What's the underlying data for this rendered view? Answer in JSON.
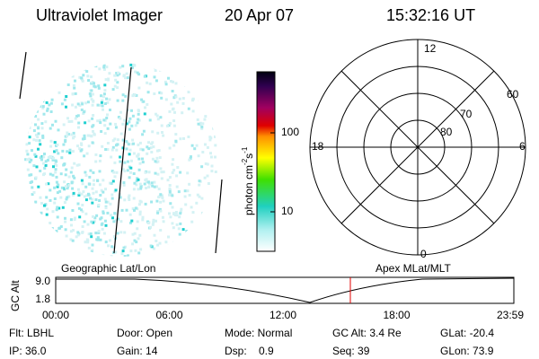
{
  "header": {
    "instrument": "Ultraviolet Imager",
    "date": "20 Apr 07",
    "time": "15:32:16 UT"
  },
  "colorbar": {
    "label": {
      "base": "photon cm",
      "exp1": "-2",
      "unit2": "s",
      "exp2": "-1"
    },
    "ticks": [
      "100",
      "10"
    ]
  },
  "polar": {
    "mlt_labels": {
      "top": "12",
      "right": "6",
      "bottom": "0",
      "left": "18"
    },
    "mlat_labels": [
      "60",
      "70",
      "80"
    ]
  },
  "timeline": {
    "left_title": "Geographic Lat/Lon",
    "right_title": "Apex MLat/MLT",
    "y_label": "GC Alt",
    "y_labels": [
      "9.0",
      "1.8"
    ],
    "x_labels": [
      "00:00",
      "06:00",
      "12:00",
      "18:00",
      "23:59"
    ]
  },
  "status": {
    "rows": [
      [
        "Flt: LBHL",
        "Door: Open",
        "Mode: Normal",
        "GC Alt: 3.4 Re",
        "GLat: -20.4"
      ],
      [
        "IP: 36.0",
        "Gain: 14",
        "Dsp:    0.9",
        "Seq: 39",
        "GLon: 73.9"
      ]
    ]
  }
}
